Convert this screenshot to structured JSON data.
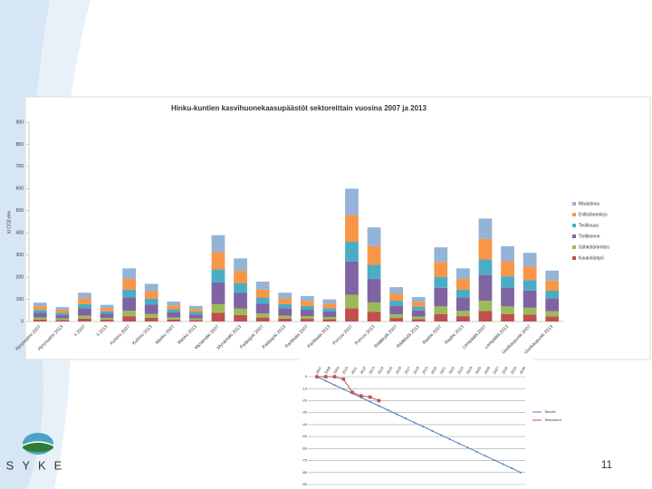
{
  "slide": {
    "page_number": "11",
    "logo_text": "SYKE"
  },
  "chart_data": [
    {
      "type": "bar",
      "stacked": true,
      "title": "Hinku-kuntien kasvihuonekaasupäästöt sektoreittain vuosina 2007 ja 2013",
      "y_label": "kt CO2-ekv.",
      "categories": [
        "Hyrynsalmi 2007",
        "Hyrynsalmi 2013",
        "Ii 2007",
        "Ii 2013",
        "Kuhmo 2007",
        "Kuhmo 2013",
        "Masku 2007",
        "Masku 2013",
        "Mynämäki 2007",
        "Mynämäki 2013",
        "Padasjoki 2007",
        "Padasjoki 2013",
        "Parikkala 2007",
        "Parikkala 2013",
        "Porvoo 2007",
        "Porvoo 2013",
        "Rääkkylä 2007",
        "Rääkkylä 2013",
        "Raahe 2007",
        "Raahe 2013",
        "Lempäälä 2007",
        "Lempäälä 2013",
        "Uusikaupunki 2007",
        "Uusikaupunki 2013"
      ],
      "series": [
        {
          "name": "Kaukolämpö",
          "color": "#c0504d",
          "values": [
            9,
            7,
            13,
            8,
            24,
            17,
            9,
            7,
            39,
            29,
            18,
            13,
            12,
            10,
            60,
            43,
            16,
            11,
            34,
            24,
            47,
            34,
            31,
            23
          ]
        },
        {
          "name": "Sähkölämmitys",
          "color": "#9bbb59",
          "values": [
            9,
            7,
            13,
            8,
            24,
            17,
            9,
            7,
            39,
            29,
            18,
            13,
            12,
            10,
            60,
            43,
            16,
            11,
            34,
            24,
            47,
            34,
            31,
            23
          ]
        },
        {
          "name": "Tieliikenne",
          "color": "#8064a2",
          "values": [
            21,
            16,
            33,
            19,
            60,
            43,
            23,
            18,
            98,
            71,
            45,
            33,
            29,
            25,
            150,
            106,
            39,
            28,
            84,
            60,
            116,
            85,
            78,
            58
          ]
        },
        {
          "name": "Teollisuus",
          "color": "#4bacc6",
          "values": [
            13,
            10,
            20,
            11,
            36,
            26,
            14,
            11,
            59,
            43,
            27,
            20,
            17,
            15,
            90,
            64,
            23,
            17,
            50,
            36,
            70,
            51,
            47,
            35
          ]
        },
        {
          "name": "Erillislämmitys",
          "color": "#f79646",
          "values": [
            17,
            13,
            26,
            15,
            48,
            34,
            18,
            14,
            78,
            57,
            36,
            26,
            23,
            20,
            120,
            85,
            31,
            22,
            67,
            48,
            93,
            68,
            62,
            46
          ]
        },
        {
          "name": "Maatalous",
          "color": "#95b3d7",
          "values": [
            16,
            12,
            25,
            14,
            48,
            33,
            17,
            13,
            77,
            56,
            36,
            25,
            22,
            20,
            120,
            84,
            30,
            21,
            66,
            48,
            92,
            68,
            61,
            45
          ]
        }
      ],
      "ylim": [
        0,
        900
      ],
      "yticks": [
        0,
        100,
        200,
        300,
        400,
        500,
        600,
        700,
        800,
        900
      ],
      "grid": false,
      "legend": "right"
    },
    {
      "type": "line",
      "categories": [
        "2007",
        "2008",
        "2009",
        "2010",
        "2011",
        "2012",
        "2013",
        "2014",
        "2015",
        "2016",
        "2017",
        "2018",
        "2019",
        "2020",
        "2021",
        "2022",
        "2023",
        "2024",
        "2025",
        "2026",
        "2027",
        "2028",
        "2029",
        "2030"
      ],
      "series": [
        {
          "name": "Tavoite",
          "color": "#4f81bd",
          "values": [
            0,
            -3.5,
            -7,
            -10.4,
            -13.9,
            -17.4,
            -20.9,
            -24.3,
            -27.8,
            -31.3,
            -34.8,
            -38.3,
            -41.7,
            -45.2,
            -48.7,
            -52.2,
            -55.7,
            -59.1,
            -62.6,
            -66.1,
            -69.6,
            -73,
            -76.5,
            -80
          ]
        },
        {
          "name": "Toteutunut",
          "color": "#c0504d",
          "values": [
            0,
            0,
            0,
            -2,
            -13,
            -16,
            -17,
            -20,
            null,
            null,
            null,
            null,
            null,
            null,
            null,
            null,
            null,
            null,
            null,
            null,
            null,
            null,
            null,
            null
          ]
        }
      ],
      "ylim": [
        -90,
        0
      ],
      "yticks": [
        -90,
        -80,
        -70,
        -60,
        -50,
        -40,
        -30,
        -20,
        -10,
        0
      ],
      "grid": true,
      "legend": "right"
    }
  ]
}
